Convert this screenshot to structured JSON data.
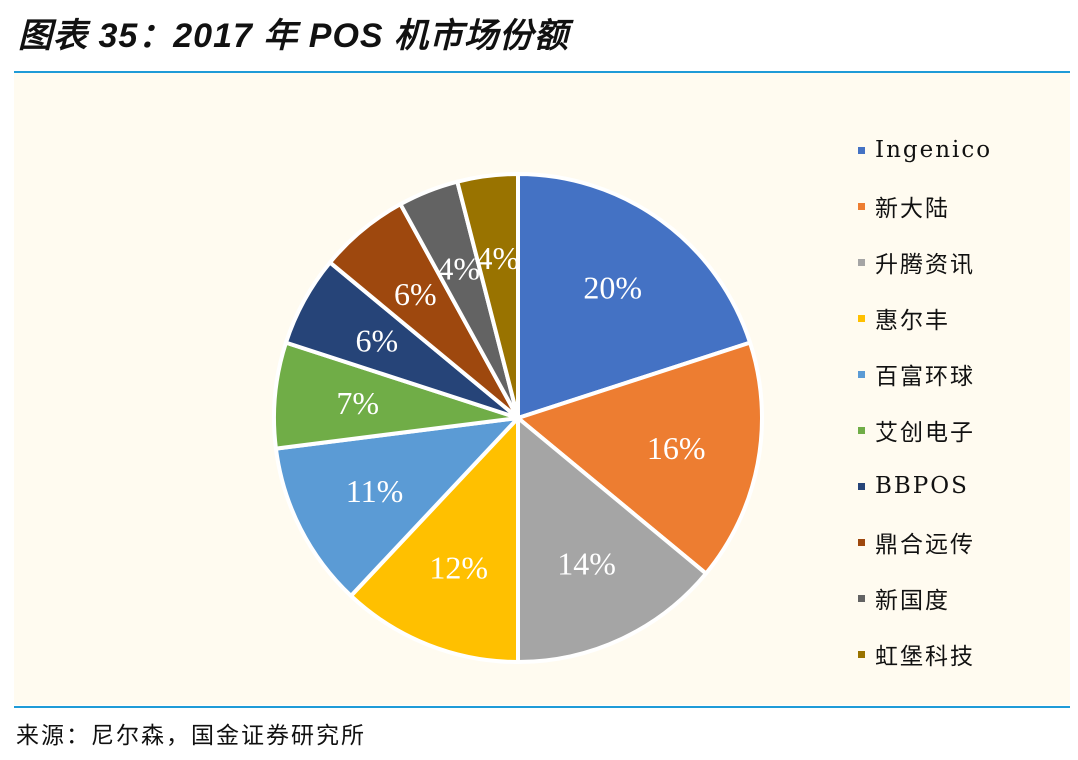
{
  "header": {
    "title": "图表 35：2017 年 POS 机市场份额"
  },
  "footer": {
    "source": "来源：尼尔森，国金证券研究所"
  },
  "chart_data": {
    "type": "pie",
    "title": "图表 35：2017 年 POS 机市场份额",
    "legend_position": "right",
    "categories": [
      "Ingenico",
      "新大陆",
      "升腾资讯",
      "惠尔丰",
      "百富环球",
      "艾创电子",
      "BBPOS",
      "鼎合远传",
      "新国度",
      "虹堡科技"
    ],
    "values": [
      20,
      16,
      14,
      12,
      11,
      7,
      6,
      6,
      4,
      4
    ],
    "labels": [
      "20%",
      "16%",
      "14%",
      "12%",
      "11%",
      "7%",
      "6%",
      "6%",
      "4%",
      "4%"
    ],
    "colors": [
      "#4472c4",
      "#ed7d31",
      "#a5a5a5",
      "#ffc000",
      "#5b9bd5",
      "#70ad47",
      "#264478",
      "#9e480e",
      "#636363",
      "#997300"
    ]
  }
}
